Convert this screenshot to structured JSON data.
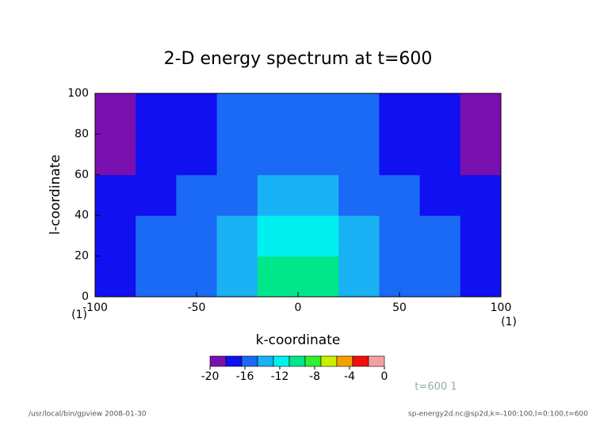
{
  "chart_data": {
    "type": "contour",
    "title": "2-D energy spectrum at t=600",
    "xlabel": "k-coordinate",
    "ylabel": "l-coordinate",
    "x_units": "(1)",
    "y_units": "(1)",
    "xlim": [
      -100,
      100
    ],
    "xticks": [
      -100,
      -50,
      0,
      50,
      100
    ],
    "ylim": [
      0,
      100
    ],
    "yticks": [
      0,
      20,
      40,
      60,
      80,
      100
    ],
    "x": [
      -90,
      -70,
      -50,
      -30,
      -10,
      10,
      30,
      50,
      70,
      90
    ],
    "y": [
      10,
      30,
      50,
      70,
      90
    ],
    "z": [
      [
        -17,
        -16,
        -15,
        -13,
        -10,
        -10,
        -13,
        -15,
        -16,
        -17
      ],
      [
        -17,
        -16,
        -15,
        -14,
        -12,
        -12,
        -14,
        -15,
        -16,
        -17
      ],
      [
        -18,
        -17,
        -16,
        -15,
        -14,
        -14,
        -15,
        -16,
        -17,
        -18
      ],
      [
        -19,
        -17,
        -17,
        -16,
        -15,
        -15,
        -16,
        -17,
        -17,
        -19
      ],
      [
        -19,
        -18,
        -17,
        -16,
        -16,
        -16,
        -16,
        -17,
        -18,
        -19
      ]
    ],
    "clim": [
      -20,
      0
    ],
    "colorbar_ticks": [
      -20,
      -16,
      -12,
      -8,
      -4,
      0
    ],
    "colors": [
      "#7a10b0",
      "#1010f0",
      "#1a6af5",
      "#19b2f5",
      "#00f0f0",
      "#00e68a",
      "#30f030",
      "#c8f000",
      "#f5a000",
      "#f01010",
      "#f5a0a0"
    ],
    "annotation": "t=600 1",
    "footnote_left": "/usr/local/bin/gpview  2008-01-30",
    "footnote_right": "sp-energy2d.nc@sp2d,k=-100:100,l=0:100,t=600"
  }
}
